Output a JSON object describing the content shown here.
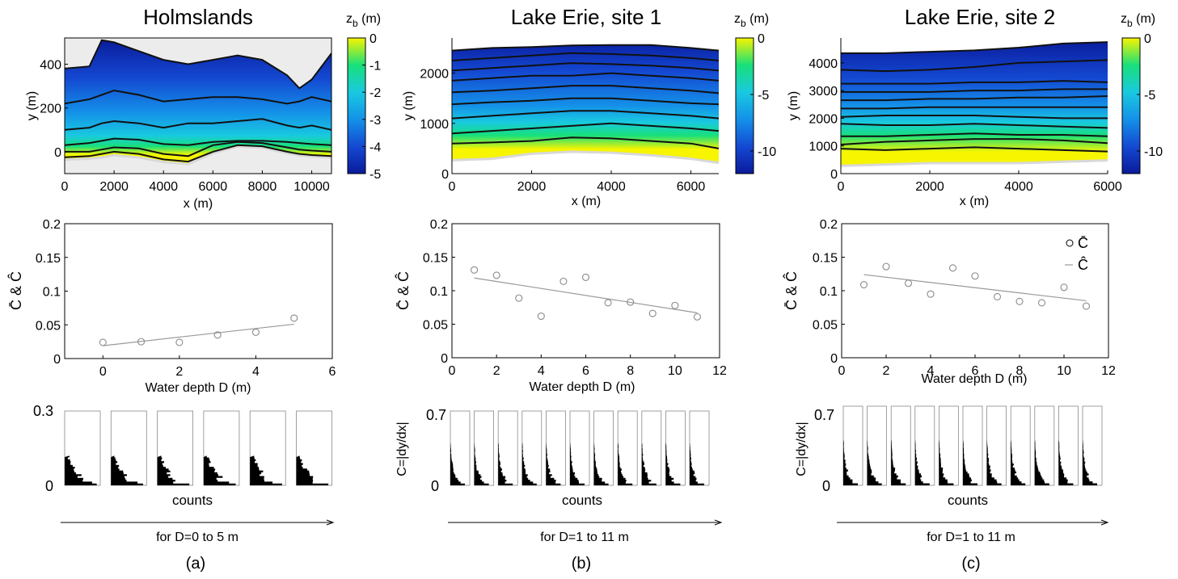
{
  "panels": [
    {
      "title": "Holmslands",
      "panel_label": "(a)",
      "map": {
        "xlabel": "x (m)",
        "ylabel": "y (m)",
        "xlim": [
          0,
          10800
        ],
        "ylim": [
          -100,
          520
        ],
        "xticks": [
          0,
          2000,
          4000,
          6000,
          8000,
          10000
        ],
        "yticks": [
          0,
          200,
          400
        ],
        "colorbar": {
          "label": "z",
          "label_sub": "b",
          "label_unit": " (m)",
          "range": [
            -5,
            0
          ],
          "ticks": [
            0,
            -1,
            -2,
            -3,
            -4,
            -5
          ]
        },
        "contour_x": [
          0,
          1000,
          1500,
          2000,
          3000,
          4000,
          5000,
          6000,
          7000,
          8000,
          9000,
          9500,
          10000,
          10800
        ],
        "contours": [
          [
            380,
            390,
            510,
            500,
            460,
            420,
            400,
            420,
            440,
            420,
            350,
            290,
            330,
            450
          ],
          [
            220,
            240,
            260,
            280,
            260,
            230,
            240,
            250,
            250,
            240,
            220,
            230,
            250,
            230
          ],
          [
            100,
            110,
            130,
            140,
            130,
            110,
            130,
            130,
            140,
            150,
            120,
            110,
            120,
            100
          ],
          [
            30,
            40,
            50,
            60,
            55,
            35,
            30,
            45,
            50,
            50,
            45,
            40,
            35,
            30
          ],
          [
            0,
            0,
            10,
            20,
            15,
            -10,
            -20,
            30,
            45,
            40,
            20,
            10,
            5,
            0
          ],
          [
            -25,
            -20,
            -10,
            0,
            -10,
            -35,
            -45,
            0,
            30,
            25,
            0,
            -10,
            -15,
            -20
          ]
        ],
        "shoreline": [
          -40,
          -35,
          -30,
          -20,
          -30,
          -50,
          -60,
          -10,
          20,
          15,
          -10,
          -20,
          -25,
          -30
        ]
      },
      "scatter": {
        "xlabel": "Water depth D (m)",
        "ylabel": "C̄ & Ĉ",
        "xlim": [
          -1,
          6
        ],
        "ylim": [
          0,
          0.2
        ],
        "xticks": [
          0,
          2,
          4,
          6
        ],
        "yticks": [
          0,
          0.05,
          0.1,
          0.15,
          0.2
        ],
        "depths": [
          0,
          1,
          2,
          3,
          4,
          5
        ],
        "c_mean": [
          0.024,
          0.025,
          0.024,
          0.035,
          0.039,
          0.06
        ],
        "fit": {
          "x": [
            0,
            5
          ],
          "y": [
            0.019,
            0.051
          ]
        }
      },
      "histograms": {
        "ylabel": "",
        "xlabel": "counts",
        "caption": "for D=0 to 5 m",
        "ymax_label": "0.3",
        "ymin_label": "0",
        "count": 6
      }
    },
    {
      "title": "Lake Erie, site 1",
      "panel_label": "(b)",
      "map": {
        "xlabel": "x (m)",
        "ylabel": "y (m)",
        "xlim": [
          0,
          6700
        ],
        "ylim": [
          0,
          2700
        ],
        "xticks": [
          0,
          2000,
          4000,
          6000
        ],
        "yticks": [
          0,
          1000,
          2000
        ],
        "colorbar": {
          "label": "z",
          "label_sub": "b",
          "label_unit": " (m)",
          "range": [
            -12,
            0
          ],
          "ticks": [
            0,
            -5,
            -10
          ]
        },
        "contour_x": [
          0,
          1000,
          2000,
          3000,
          4000,
          5000,
          6000,
          6700
        ],
        "contours": [
          [
            2450,
            2500,
            2520,
            2550,
            2560,
            2560,
            2500,
            2450
          ],
          [
            2250,
            2300,
            2350,
            2400,
            2380,
            2350,
            2300,
            2250
          ],
          [
            2050,
            2100,
            2150,
            2200,
            2180,
            2150,
            2100,
            2050
          ],
          [
            1850,
            1900,
            1950,
            1950,
            2000,
            1950,
            1900,
            1850
          ],
          [
            1620,
            1650,
            1700,
            1750,
            1750,
            1700,
            1650,
            1600
          ],
          [
            1380,
            1420,
            1450,
            1500,
            1500,
            1450,
            1400,
            1380
          ],
          [
            1100,
            1150,
            1200,
            1250,
            1250,
            1200,
            1150,
            1100
          ],
          [
            800,
            850,
            900,
            950,
            1000,
            950,
            900,
            850
          ],
          [
            600,
            620,
            650,
            720,
            700,
            650,
            600,
            500
          ]
        ],
        "shoreline": [
          250,
          280,
          380,
          420,
          400,
          350,
          280,
          200
        ]
      },
      "scatter": {
        "xlabel": "Water depth D (m)",
        "ylabel": "C̄ & Ĉ",
        "xlim": [
          0,
          12
        ],
        "ylim": [
          0,
          0.2
        ],
        "xticks": [
          0,
          2,
          4,
          6,
          8,
          10,
          12
        ],
        "yticks": [
          0,
          0.05,
          0.1,
          0.15,
          0.2
        ],
        "depths": [
          1,
          2,
          3,
          4,
          5,
          6,
          7,
          8,
          9,
          10,
          11
        ],
        "c_mean": [
          0.131,
          0.123,
          0.089,
          0.062,
          0.114,
          0.12,
          0.082,
          0.083,
          0.066,
          0.078,
          0.061
        ],
        "fit": {
          "x": [
            1,
            11
          ],
          "y": [
            0.119,
            0.067
          ]
        }
      },
      "histograms": {
        "ylabel": "C=|dy/dx|",
        "xlabel": "counts",
        "caption": "for D=1 to 11 m",
        "ymax_label": "0.7",
        "ymin_label": "0",
        "count": 11
      }
    },
    {
      "title": "Lake Erie, site 2",
      "panel_label": "(c)",
      "map": {
        "xlabel": "x (m)",
        "ylabel": "y (m)",
        "xlim": [
          0,
          6000
        ],
        "ylim": [
          0,
          4900
        ],
        "xticks": [
          0,
          2000,
          4000,
          6000
        ],
        "yticks": [
          0,
          1000,
          2000,
          3000,
          4000
        ],
        "colorbar": {
          "label": "z",
          "label_sub": "b",
          "label_unit": " (m)",
          "range": [
            -12,
            0
          ],
          "ticks": [
            0,
            -5,
            -10
          ]
        },
        "contour_x": [
          0,
          1000,
          2000,
          3000,
          4000,
          5000,
          6000
        ],
        "contours": [
          [
            4350,
            4350,
            4400,
            4450,
            4550,
            4700,
            4750
          ],
          [
            3750,
            3700,
            3750,
            3850,
            4000,
            4050,
            4100
          ],
          [
            3250,
            3250,
            3250,
            3300,
            3300,
            3350,
            3300
          ],
          [
            2950,
            2950,
            2950,
            3000,
            3000,
            3050,
            3050
          ],
          [
            2650,
            2650,
            2700,
            2700,
            2750,
            2750,
            2800
          ],
          [
            2350,
            2350,
            2400,
            2400,
            2400,
            2400,
            2400
          ],
          [
            2050,
            2100,
            2100,
            2100,
            2050,
            2000,
            2000
          ],
          [
            1800,
            1750,
            1750,
            1800,
            1750,
            1700,
            1650
          ],
          [
            1350,
            1350,
            1400,
            1450,
            1400,
            1400,
            1350
          ],
          [
            1050,
            1150,
            1200,
            1250,
            1250,
            1200,
            1100
          ],
          [
            900,
            850,
            900,
            950,
            900,
            850,
            800
          ]
        ],
        "shoreline": [
          250,
          300,
          350,
          350,
          350,
          400,
          450
        ]
      },
      "scatter": {
        "xlabel": "Water depth D (m)",
        "ylabel": "C̄ & Ĉ",
        "xlim": [
          0,
          12
        ],
        "ylim": [
          0,
          0.2
        ],
        "xticks": [
          0,
          2,
          4,
          6,
          8,
          10,
          12
        ],
        "yticks": [
          0,
          0.05,
          0.1,
          0.15,
          0.2
        ],
        "depths": [
          1,
          2,
          3,
          4,
          5,
          6,
          7,
          8,
          9,
          10,
          11
        ],
        "c_mean": [
          0.109,
          0.136,
          0.111,
          0.095,
          0.134,
          0.122,
          0.091,
          0.084,
          0.082,
          0.105,
          0.077
        ],
        "fit": {
          "x": [
            1,
            11
          ],
          "y": [
            0.124,
            0.085
          ]
        },
        "legend": {
          "mean_label": "C̄",
          "fit_label": "Ĉ",
          "position": "top-right"
        }
      },
      "histograms": {
        "ylabel": "C=|dy/dx|",
        "xlabel": "counts",
        "caption": "for D=1 to 11 m",
        "ymax_label": "0.7",
        "ymin_label": "0",
        "count": 11
      }
    }
  ],
  "chart_data": [
    {
      "type": "scatter",
      "title": "Holmslands",
      "xlabel": "Water depth D (m)",
      "ylabel": "C̄ & Ĉ",
      "xlim": [
        -1,
        6
      ],
      "ylim": [
        0,
        0.2
      ],
      "grid": false,
      "series": [
        {
          "x": [
            0,
            1,
            2,
            3,
            4,
            5
          ],
          "values": [
            0.024,
            0.025,
            0.024,
            0.035,
            0.039,
            0.06
          ]
        }
      ],
      "fit_line": {
        "x": [
          0,
          5
        ],
        "y": [
          0.019,
          0.051
        ]
      }
    },
    {
      "type": "scatter",
      "title": "Lake Erie, site 1",
      "xlabel": "Water depth D (m)",
      "ylabel": "C̄ & Ĉ",
      "xlim": [
        0,
        12
      ],
      "ylim": [
        0,
        0.2
      ],
      "grid": false,
      "series": [
        {
          "x": [
            1,
            2,
            3,
            4,
            5,
            6,
            7,
            8,
            9,
            10,
            11
          ],
          "values": [
            0.131,
            0.123,
            0.089,
            0.062,
            0.114,
            0.12,
            0.082,
            0.083,
            0.066,
            0.078,
            0.061
          ]
        }
      ],
      "fit_line": {
        "x": [
          1,
          11
        ],
        "y": [
          0.119,
          0.067
        ]
      }
    },
    {
      "type": "scatter",
      "title": "Lake Erie, site 2",
      "xlabel": "Water depth D (m)",
      "ylabel": "C̄ & Ĉ",
      "xlim": [
        0,
        12
      ],
      "ylim": [
        0,
        0.2
      ],
      "grid": false,
      "legend": "top-right",
      "series": [
        {
          "name": "C̄",
          "x": [
            1,
            2,
            3,
            4,
            5,
            6,
            7,
            8,
            9,
            10,
            11
          ],
          "values": [
            0.109,
            0.136,
            0.111,
            0.095,
            0.134,
            0.122,
            0.091,
            0.084,
            0.082,
            0.105,
            0.077
          ]
        },
        {
          "name": "Ĉ",
          "x": [
            1,
            11
          ],
          "values": [
            0.124,
            0.085
          ]
        }
      ]
    }
  ],
  "colors": {
    "axis": "#000000",
    "marker": "#8a8a8a",
    "fit_line": "#999999",
    "contour": "#111111",
    "land": "#ececec",
    "histogram": "#000000"
  }
}
